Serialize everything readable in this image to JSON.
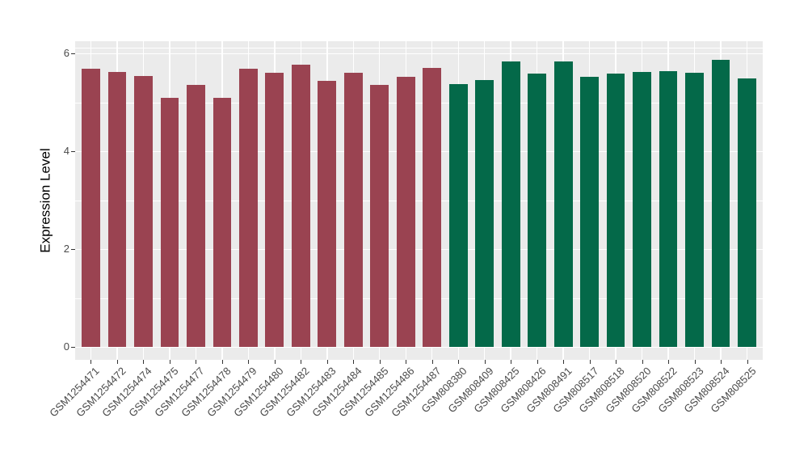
{
  "figure": {
    "background": "#FFFFFF"
  },
  "chart_data": {
    "type": "bar",
    "title": "",
    "xlabel": "",
    "ylabel": "Expression Level",
    "ylim": [
      0,
      6.23
    ],
    "yticks": [
      0,
      2,
      4,
      6
    ],
    "yminor": [
      1,
      3,
      5,
      6.12
    ],
    "grid": "on",
    "legend_position": "none",
    "panel_bg": "#EBEBEB",
    "grid_color": "#FFFFFF",
    "tick_color": "#333333",
    "axis_text_color": "#4A4A4A",
    "axis_title_color": "#000000",
    "bar_width_fraction": 0.7,
    "x_label_angle_deg": 45,
    "categories": [
      "GSM1254471",
      "GSM1254472",
      "GSM1254474",
      "GSM1254475",
      "GSM1254477",
      "GSM1254478",
      "GSM1254479",
      "GSM1254480",
      "GSM1254482",
      "GSM1254483",
      "GSM1254484",
      "GSM1254485",
      "GSM1254486",
      "GSM1254487",
      "GSM808380",
      "GSM808409",
      "GSM808425",
      "GSM808426",
      "GSM808491",
      "GSM808517",
      "GSM808518",
      "GSM808520",
      "GSM808522",
      "GSM808523",
      "GSM808524",
      "GSM808525"
    ],
    "values": [
      5.68,
      5.62,
      5.53,
      5.09,
      5.35,
      5.09,
      5.68,
      5.61,
      5.77,
      5.44,
      5.61,
      5.35,
      5.52,
      5.7,
      5.37,
      5.46,
      5.84,
      5.58,
      5.84,
      5.52,
      5.59,
      5.62,
      5.64,
      5.6,
      5.86,
      5.48
    ],
    "groups": [
      "group-red",
      "group-red",
      "group-red",
      "group-red",
      "group-red",
      "group-red",
      "group-red",
      "group-red",
      "group-red",
      "group-red",
      "group-red",
      "group-red",
      "group-red",
      "group-red",
      "group-green",
      "group-green",
      "group-green",
      "group-green",
      "group-green",
      "group-green",
      "group-green",
      "group-green",
      "group-green",
      "group-green",
      "group-green",
      "group-green"
    ],
    "group_colors": {
      "group-red": "#9A4351",
      "group-green": "#046949"
    }
  }
}
